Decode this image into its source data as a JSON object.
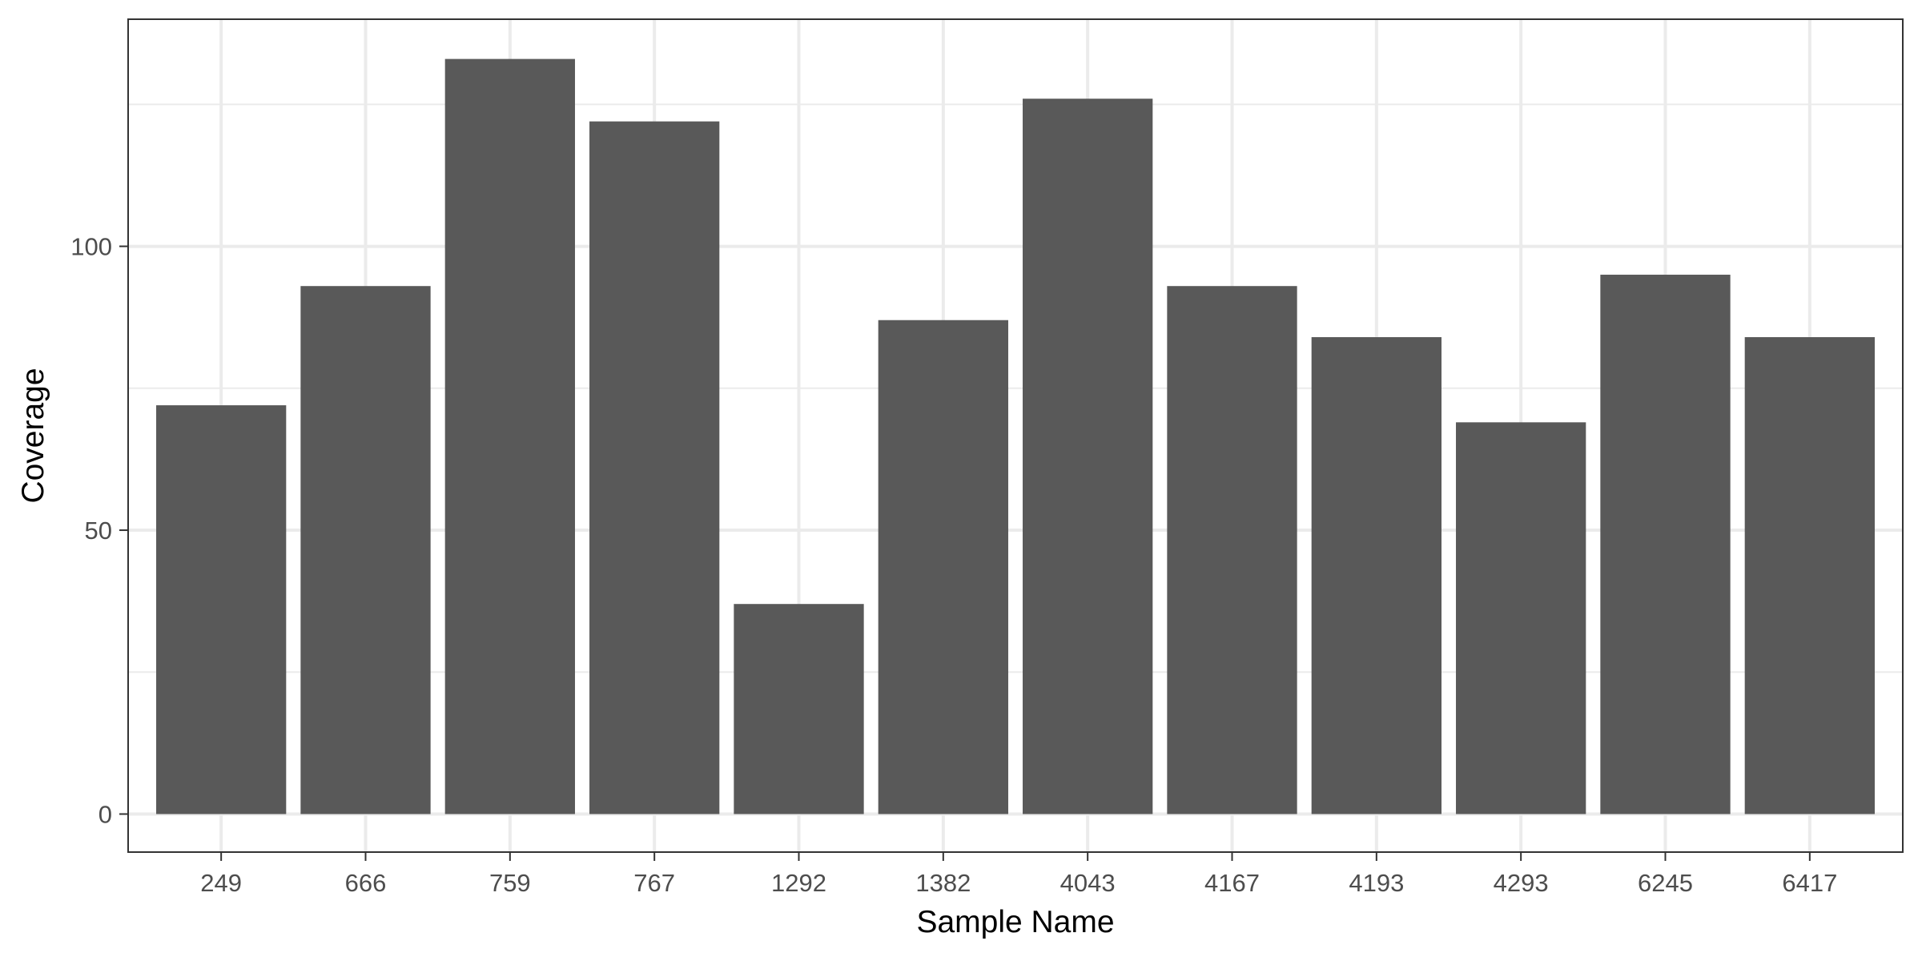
{
  "chart_data": {
    "type": "bar",
    "title": "",
    "xlabel": "Sample Name",
    "ylabel": "Coverage",
    "categories": [
      "249",
      "666",
      "759",
      "767",
      "1292",
      "1382",
      "4043",
      "4167",
      "4193",
      "4293",
      "6245",
      "6417"
    ],
    "values": [
      72,
      93,
      133,
      122,
      37,
      87,
      126,
      93,
      84,
      69,
      95,
      84
    ],
    "ylim": [
      -6.7,
      140
    ],
    "yticks": [
      0,
      50,
      100
    ],
    "ytick_labels": [
      "0",
      "50",
      "100"
    ],
    "grid": true,
    "legend": "none",
    "colors": {
      "bar": "#595959",
      "grid": "#ebebeb",
      "panel_border": "#333333",
      "tick_text": "#4d4d4d",
      "axis_title": "#000000"
    }
  }
}
